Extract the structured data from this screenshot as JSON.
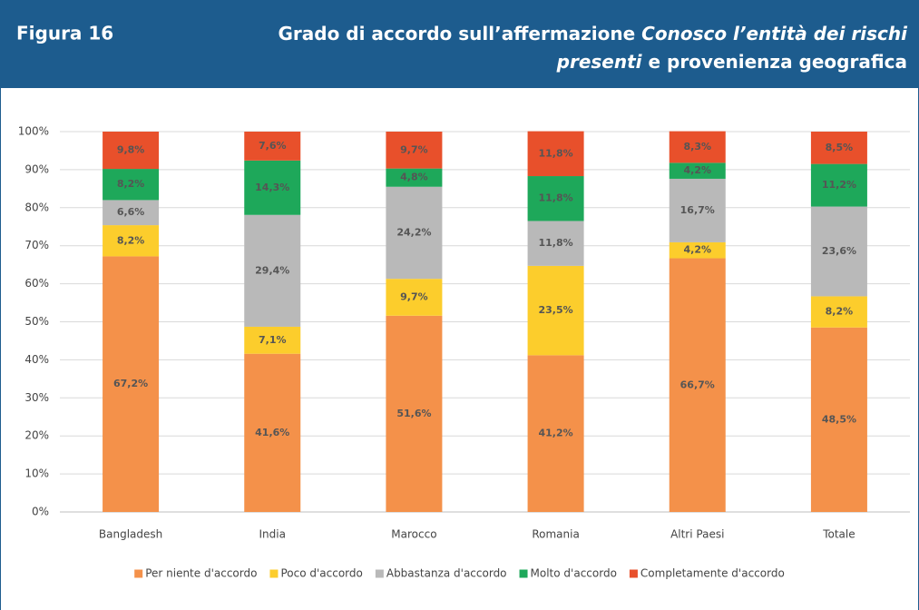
{
  "chart_data": {
    "type": "stacked_bar",
    "figure_label": "Figura 16",
    "title_lines": [
      [
        {
          "text": "Grado di accordo sull’affermazione ",
          "italic": false
        },
        {
          "text": "Conosco l’entità dei rischi",
          "italic": true
        }
      ],
      [
        {
          "text": "presenti",
          "italic": true
        },
        {
          "text": " e provenienza geografica",
          "italic": false
        }
      ]
    ],
    "categories": [
      "Bangladesh",
      "India",
      "Marocco",
      "Romania",
      "Altri Paesi",
      "Totale"
    ],
    "series": [
      {
        "name": "Per niente d'accordo",
        "color": "#f4914a",
        "values": [
          67.2,
          41.6,
          51.6,
          41.2,
          66.7,
          48.5
        ],
        "value_labels": [
          "67,2%",
          "41,6%",
          "51,6%",
          "41,2%",
          "66,7%",
          "48,5%"
        ]
      },
      {
        "name": "Poco d'accordo",
        "color": "#fccd2c",
        "values": [
          8.2,
          7.1,
          9.7,
          23.5,
          4.2,
          8.2
        ],
        "value_labels": [
          "8,2%",
          "7,1%",
          "9,7%",
          "23,5%",
          "4,2%",
          "8,2%"
        ]
      },
      {
        "name": "Abbastanza d'accordo",
        "color": "#b9b9b9",
        "values": [
          6.6,
          29.4,
          24.2,
          11.8,
          16.7,
          23.6
        ],
        "value_labels": [
          "6,6%",
          "29,4%",
          "24,2%",
          "11,8%",
          "16,7%",
          "23,6%"
        ]
      },
      {
        "name": "Molto d'accordo",
        "color": "#1ea85a",
        "values": [
          8.2,
          14.3,
          4.8,
          11.8,
          4.2,
          11.2
        ],
        "value_labels": [
          "8,2%",
          "14,3%",
          "4,8%",
          "11,8%",
          "4,2%",
          "11,2%"
        ]
      },
      {
        "name": "Completamente d'accordo",
        "color": "#e8502b",
        "values": [
          9.8,
          7.6,
          9.7,
          11.8,
          8.3,
          8.5
        ],
        "value_labels": [
          "9,8%",
          "7,6%",
          "9,7%",
          "11,8%",
          "8,3%",
          "8,5%"
        ]
      }
    ],
    "ylim": [
      0,
      100
    ],
    "yticks": [
      {
        "value": 0,
        "label": "0%"
      },
      {
        "value": 10,
        "label": "10%"
      },
      {
        "value": 20,
        "label": "20%"
      },
      {
        "value": 30,
        "label": "30%"
      },
      {
        "value": 40,
        "label": "40%"
      },
      {
        "value": 50,
        "label": "50%"
      },
      {
        "value": 60,
        "label": "60%"
      },
      {
        "value": 70,
        "label": "70%"
      },
      {
        "value": 80,
        "label": "80%"
      },
      {
        "value": 90,
        "label": "90%"
      },
      {
        "value": 100,
        "label": "100%"
      }
    ],
    "grid": true,
    "legend": "bottom"
  }
}
